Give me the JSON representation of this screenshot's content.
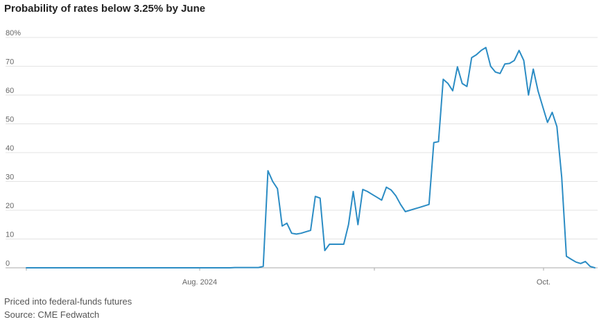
{
  "title": "Probability of rates below 3.25% by June",
  "notes": {
    "line1": "Priced into federal-funds futures",
    "line2": "Source: CME Fedwatch"
  },
  "colors": {
    "line": "#2b8cc4",
    "grid": "#e3e3e3",
    "axis": "#aaaaaa"
  },
  "chart_data": {
    "type": "line",
    "ylim": [
      0,
      80
    ],
    "yticks": [
      0,
      10,
      20,
      30,
      40,
      50,
      60,
      70,
      80
    ],
    "yticklabels": [
      "0",
      "10",
      "20",
      "30",
      "40",
      "50",
      "60",
      "70",
      "80%"
    ],
    "xticklabels": [
      "Aug. 2024",
      "Oct."
    ],
    "grid": true,
    "series": [
      {
        "values": [
          0,
          0,
          0,
          0,
          0,
          0,
          0,
          0,
          0,
          0,
          0,
          0,
          0,
          0,
          0,
          0,
          0,
          0,
          0,
          0,
          0,
          0,
          0,
          0,
          0,
          0,
          0,
          0,
          0,
          0,
          0,
          0,
          0,
          0,
          0,
          0,
          0,
          0,
          0,
          0,
          0,
          0,
          0,
          0,
          0.1,
          0.1,
          0.1,
          0.1,
          0.1,
          0.1,
          0.5,
          33.7,
          30,
          27.5,
          14.5,
          15.5,
          12,
          11.7,
          12,
          12.5,
          13,
          24.8,
          24.2,
          6,
          8.2,
          8.2,
          8.2,
          8.2,
          15,
          26.5,
          15,
          27.2,
          26.5,
          25.5,
          24.5,
          23.5,
          28,
          27,
          25,
          22,
          19.5,
          20,
          20.5,
          21,
          21.5,
          22,
          43.5,
          43.8,
          65.5,
          64,
          61.5,
          69.8,
          64,
          63,
          73,
          74,
          75.5,
          76.5,
          70,
          68,
          67.5,
          70.8,
          71,
          72,
          75.5,
          72,
          60,
          69,
          61.5,
          56,
          50.5,
          54,
          49,
          31.5,
          4,
          3,
          2,
          1.5,
          2.2,
          0.5,
          0
        ]
      }
    ]
  }
}
